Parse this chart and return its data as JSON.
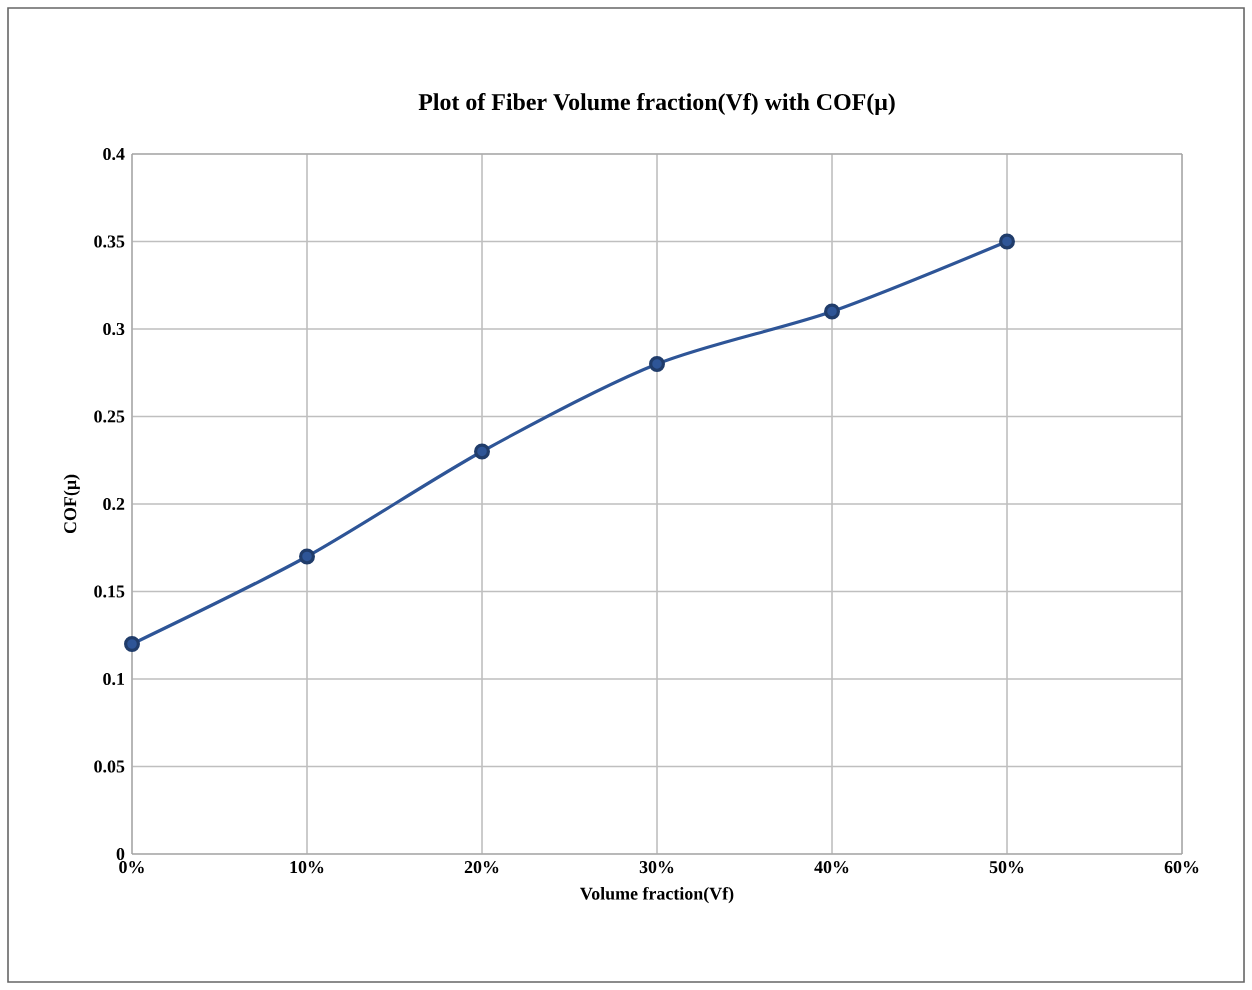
{
  "chart_data": {
    "type": "line",
    "title": "Plot of Fiber Volume fraction(Vf) with COF(μ)",
    "xlabel": "Volume fraction(Vf)",
    "ylabel": "COF(μ)",
    "x": [
      0,
      10,
      20,
      30,
      40,
      50
    ],
    "series": [
      {
        "color": "#2e5597",
        "values": [
          0.12,
          0.17,
          0.23,
          0.28,
          0.31,
          0.35
        ]
      }
    ],
    "xlim": [
      0,
      60
    ],
    "xticks": [
      {
        "value": 0,
        "label": "0%"
      },
      {
        "value": 10,
        "label": "10%"
      },
      {
        "value": 20,
        "label": "20%"
      },
      {
        "value": 30,
        "label": "30%"
      },
      {
        "value": 40,
        "label": "40%"
      },
      {
        "value": 50,
        "label": "50%"
      },
      {
        "value": 60,
        "label": "60%"
      }
    ],
    "ylim": [
      0,
      0.4
    ],
    "yticks": [
      0,
      0.05,
      0.1,
      0.15,
      0.2,
      0.25,
      0.3,
      0.35,
      0.4
    ],
    "grid": true,
    "marker": "circle",
    "line_style": "solid"
  }
}
